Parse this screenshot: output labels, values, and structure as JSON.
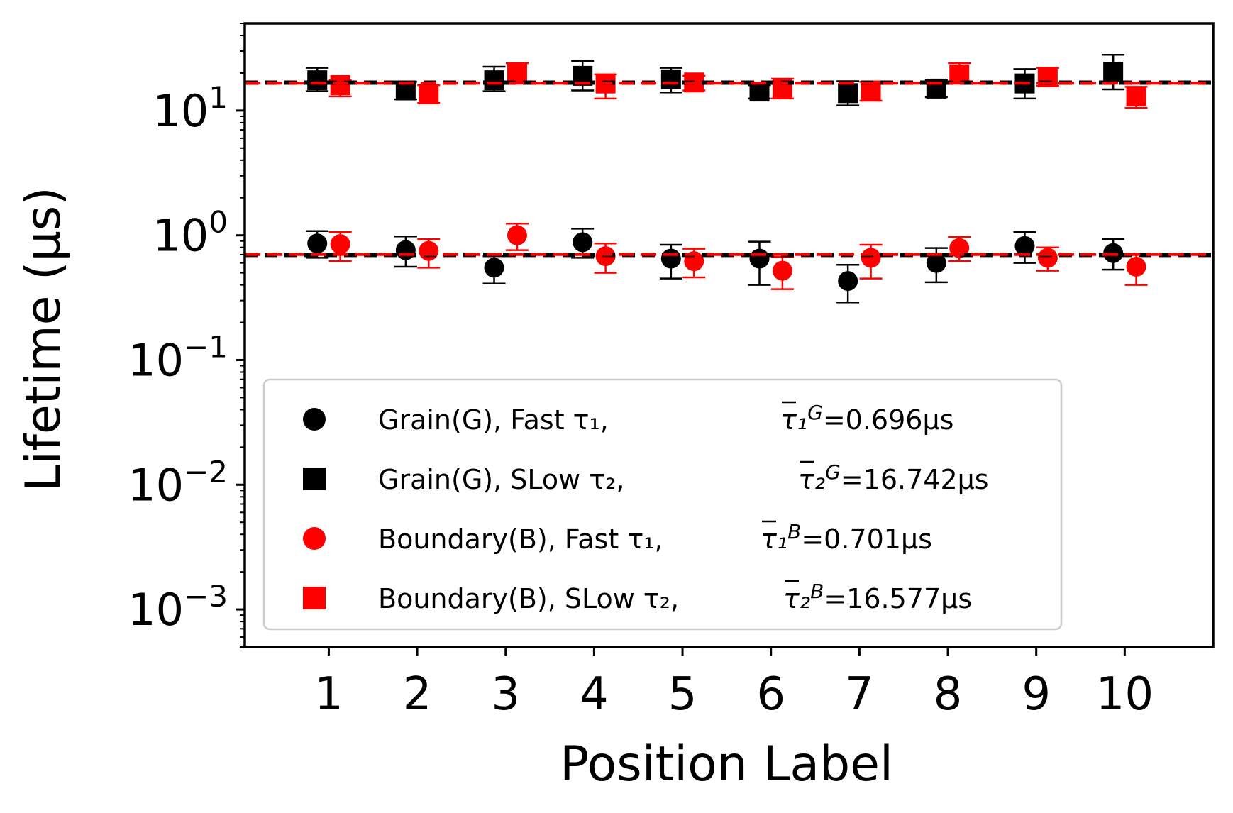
{
  "chart_data": {
    "type": "scatter",
    "title": "",
    "xlabel": "Position Label",
    "ylabel": "Lifetime (μs)",
    "yscale": "log",
    "ylim": [
      0.0005,
      50
    ],
    "xlim": [
      0.05,
      11
    ],
    "categories": [
      "1",
      "2",
      "3",
      "4",
      "5",
      "6",
      "7",
      "8",
      "9",
      "10"
    ],
    "y_ticks": [
      {
        "value": 10,
        "base": "10",
        "exp": "1"
      },
      {
        "value": 1,
        "base": "10",
        "exp": "0"
      },
      {
        "value": 0.1,
        "base": "10",
        "exp": "−1"
      },
      {
        "value": 0.01,
        "base": "10",
        "exp": "−2"
      },
      {
        "value": 0.001,
        "base": "10",
        "exp": "−3"
      }
    ],
    "series": [
      {
        "name": "Grain(G), Fast τ₁,",
        "mean_label": "τ̅₁ᴳ=0.696μs",
        "mean_base": "τ₁",
        "mean_sup": "G",
        "mean_value_text": "=0.696μs",
        "marker": "circle",
        "color": "#000000",
        "mean": 0.696,
        "offset": -0.13,
        "values": [
          0.86,
          0.76,
          0.55,
          0.88,
          0.65,
          0.65,
          0.43,
          0.6,
          0.82,
          0.72
        ],
        "err_low": [
          0.66,
          0.56,
          0.41,
          0.66,
          0.45,
          0.4,
          0.29,
          0.42,
          0.6,
          0.53
        ],
        "err_high": [
          1.08,
          0.98,
          0.68,
          1.13,
          0.84,
          0.89,
          0.58,
          0.79,
          1.06,
          0.93
        ]
      },
      {
        "name": "Grain(G), SLow τ₂,",
        "mean_label": "τ̅₂ᴳ=16.742μs",
        "mean_base": "τ₂",
        "mean_sup": "G",
        "mean_value_text": "=16.742μs",
        "marker": "square",
        "color": "#000000",
        "mean": 16.742,
        "offset": -0.13,
        "values": [
          17.5,
          14.5,
          17.5,
          19.0,
          17.8,
          14.2,
          13.8,
          15.0,
          16.5,
          20.5
        ],
        "err_low": [
          14.3,
          12.3,
          14.3,
          14.5,
          14.0,
          12.5,
          11.0,
          12.8,
          12.5,
          14.8
        ],
        "err_high": [
          22.0,
          17.0,
          22.5,
          25.0,
          22.0,
          16.0,
          17.2,
          17.5,
          21.5,
          28.0
        ]
      },
      {
        "name": "Boundary(B), Fast τ₁,",
        "mean_label": "τ̅₁ᴮ=0.701μs",
        "mean_base": "τ₁",
        "mean_sup": "B",
        "mean_value_text": "=0.701μs",
        "marker": "circle",
        "color": "#ff0000",
        "mean": 0.701,
        "offset": 0.13,
        "values": [
          0.85,
          0.75,
          1.0,
          0.68,
          0.62,
          0.52,
          0.66,
          0.79,
          0.66,
          0.56
        ],
        "err_low": [
          0.62,
          0.55,
          0.76,
          0.5,
          0.46,
          0.37,
          0.45,
          0.62,
          0.52,
          0.4
        ],
        "err_high": [
          1.06,
          0.93,
          1.24,
          0.86,
          0.78,
          0.67,
          0.84,
          0.97,
          0.8,
          0.71
        ]
      },
      {
        "name": "Boundary(B), SLow τ₂,",
        "mean_label": "τ̅₂ᴮ=16.577μs",
        "mean_base": "τ₂",
        "mean_sup": "B",
        "mean_value_text": "=16.577μs",
        "marker": "square",
        "color": "#ff0000",
        "mean": 16.577,
        "offset": 0.13,
        "values": [
          16.0,
          13.5,
          20.0,
          16.5,
          16.8,
          15.2,
          14.5,
          19.5,
          18.5,
          13.0
        ],
        "err_low": [
          13.0,
          11.5,
          16.5,
          12.5,
          14.5,
          12.5,
          12.0,
          16.5,
          15.8,
          10.5
        ],
        "err_high": [
          17.5,
          16.0,
          24.0,
          19.5,
          19.0,
          18.0,
          17.0,
          24.0,
          22.0,
          15.5
        ]
      }
    ],
    "legend": {
      "location": "lower-left"
    },
    "grid": false
  }
}
